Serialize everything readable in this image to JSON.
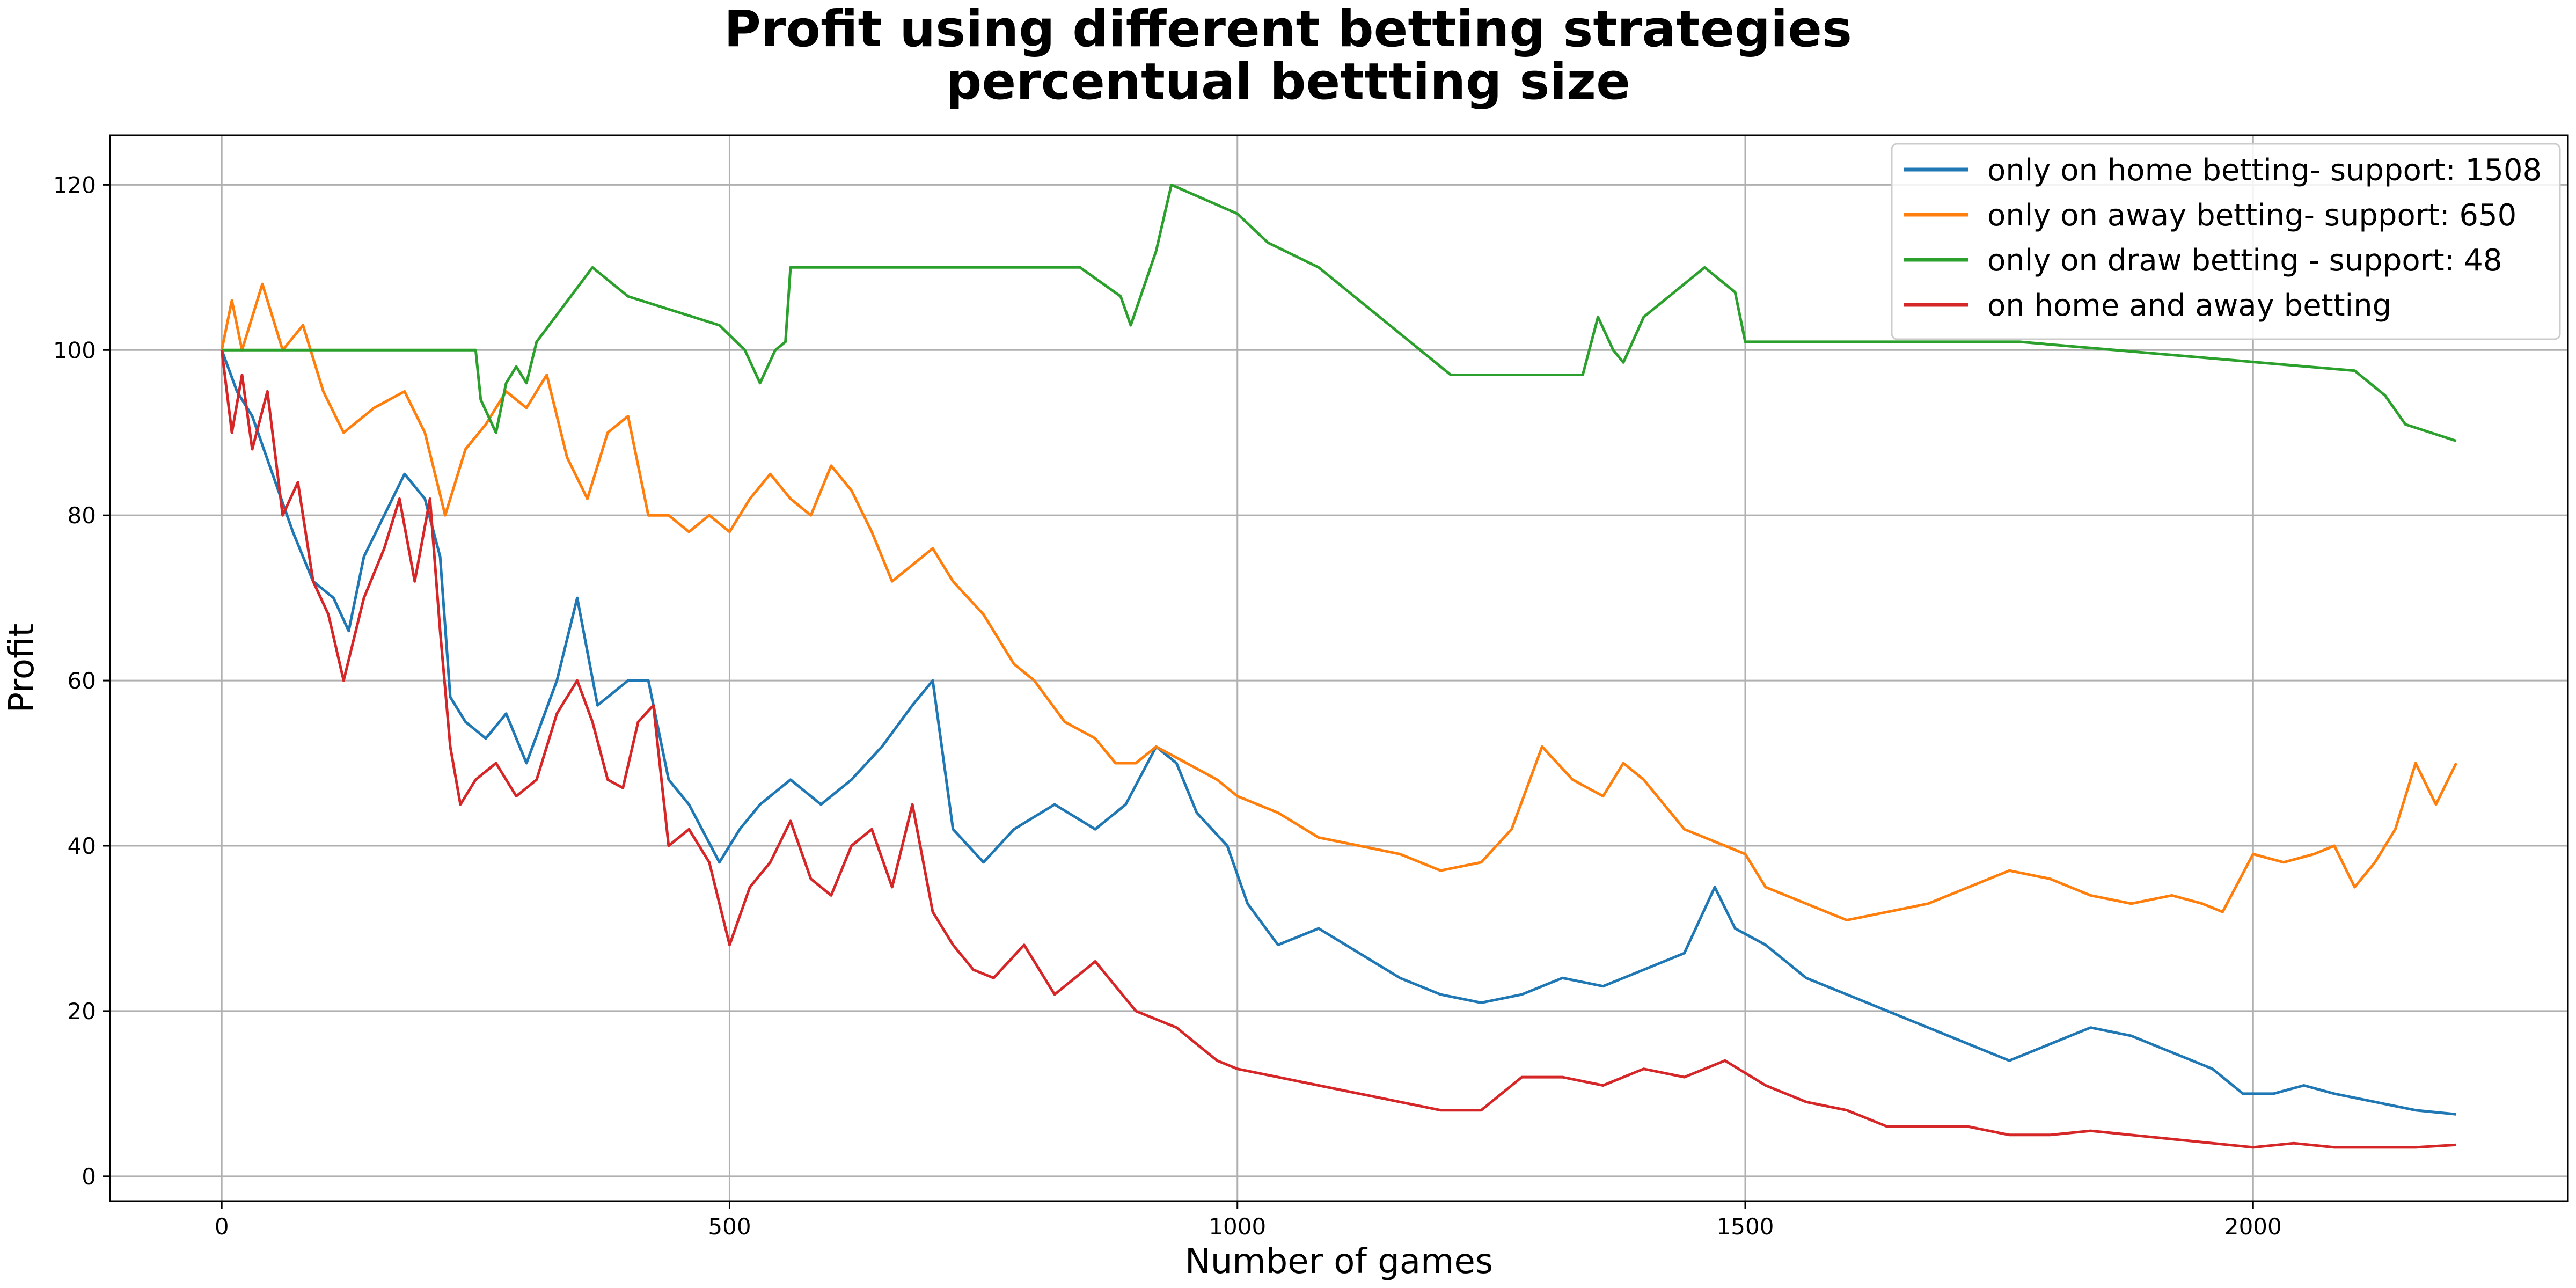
{
  "chart_data": {
    "type": "line",
    "title": "Profit using different betting strategies",
    "subtitle": "percentual bettting size",
    "xlabel": "Number of games",
    "ylabel": "Profit",
    "xlim": [
      -110,
      2310
    ],
    "ylim": [
      -3,
      126
    ],
    "xticks": [
      0,
      500,
      1000,
      1500,
      2000
    ],
    "yticks": [
      0,
      20,
      40,
      60,
      80,
      100,
      120
    ],
    "grid": true,
    "legend_position": "top-right",
    "series": [
      {
        "name": "only on home betting- support: 1508",
        "color": "#1f77b4",
        "x": [
          0,
          15,
          30,
          50,
          70,
          90,
          110,
          125,
          140,
          160,
          180,
          200,
          215,
          225,
          240,
          260,
          280,
          300,
          330,
          350,
          370,
          400,
          420,
          440,
          460,
          490,
          510,
          530,
          560,
          590,
          620,
          650,
          680,
          700,
          720,
          750,
          780,
          820,
          860,
          890,
          920,
          940,
          960,
          990,
          1010,
          1040,
          1080,
          1120,
          1160,
          1200,
          1240,
          1280,
          1320,
          1360,
          1400,
          1440,
          1470,
          1490,
          1520,
          1560,
          1600,
          1640,
          1680,
          1720,
          1760,
          1800,
          1840,
          1880,
          1920,
          1960,
          1990,
          2020,
          2050,
          2080,
          2120,
          2160,
          2200
        ],
        "y": [
          100,
          95,
          92,
          85,
          78,
          72,
          70,
          66,
          75,
          80,
          85,
          82,
          75,
          58,
          55,
          53,
          56,
          50,
          60,
          70,
          57,
          60,
          60,
          48,
          45,
          38,
          42,
          45,
          48,
          45,
          48,
          52,
          57,
          60,
          42,
          38,
          42,
          45,
          42,
          45,
          52,
          50,
          44,
          40,
          33,
          28,
          30,
          27,
          24,
          22,
          21,
          22,
          24,
          23,
          25,
          27,
          35,
          30,
          28,
          24,
          22,
          20,
          18,
          16,
          14,
          16,
          18,
          17,
          15,
          13,
          10,
          10,
          11,
          10,
          9,
          8,
          7.5
        ]
      },
      {
        "name": "only on away betting- support: 650",
        "color": "#ff7f0e",
        "x": [
          0,
          10,
          20,
          40,
          60,
          80,
          100,
          120,
          150,
          180,
          200,
          220,
          240,
          260,
          280,
          300,
          320,
          340,
          360,
          380,
          400,
          420,
          440,
          460,
          480,
          500,
          520,
          540,
          560,
          580,
          600,
          620,
          640,
          660,
          680,
          700,
          720,
          750,
          780,
          800,
          830,
          860,
          880,
          900,
          920,
          950,
          980,
          1000,
          1040,
          1080,
          1120,
          1160,
          1200,
          1240,
          1270,
          1300,
          1330,
          1360,
          1380,
          1400,
          1440,
          1480,
          1500,
          1520,
          1560,
          1600,
          1640,
          1680,
          1720,
          1760,
          1800,
          1840,
          1880,
          1920,
          1950,
          1970,
          2000,
          2030,
          2060,
          2080,
          2100,
          2120,
          2140,
          2160,
          2180,
          2200
        ],
        "y": [
          100,
          106,
          100,
          108,
          100,
          103,
          95,
          90,
          93,
          95,
          90,
          80,
          88,
          91,
          95,
          93,
          97,
          87,
          82,
          90,
          92,
          80,
          80,
          78,
          80,
          78,
          82,
          85,
          82,
          80,
          86,
          83,
          78,
          72,
          74,
          76,
          72,
          68,
          62,
          60,
          55,
          53,
          50,
          50,
          52,
          50,
          48,
          46,
          44,
          41,
          40,
          39,
          37,
          38,
          42,
          52,
          48,
          46,
          50,
          48,
          42,
          40,
          39,
          35,
          33,
          31,
          32,
          33,
          35,
          37,
          36,
          34,
          33,
          34,
          33,
          32,
          39,
          38,
          39,
          40,
          35,
          38,
          42,
          50,
          45,
          50
        ]
      },
      {
        "name": "only on draw betting - support: 48",
        "color": "#2ca02c",
        "x": [
          0,
          250,
          255,
          270,
          280,
          290,
          300,
          310,
          365,
          400,
          490,
          515,
          530,
          545,
          555,
          560,
          845,
          885,
          895,
          920,
          935,
          1000,
          1030,
          1080,
          1150,
          1210,
          1340,
          1355,
          1370,
          1380,
          1400,
          1420,
          1460,
          1490,
          1500,
          1510,
          1770,
          2100,
          2130,
          2150,
          2200
        ],
        "y": [
          100,
          100,
          94,
          90,
          96,
          98,
          96,
          101,
          110,
          106.5,
          103,
          100,
          96,
          100,
          101,
          110,
          110,
          106.5,
          103,
          112,
          120,
          116.5,
          113,
          110,
          103,
          97,
          97,
          104,
          100,
          98.5,
          104,
          106,
          110,
          107,
          101,
          101,
          101,
          97.5,
          94.5,
          91,
          89
        ]
      },
      {
        "name": "on home and away betting",
        "color": "#d62728",
        "x": [
          0,
          10,
          20,
          30,
          45,
          60,
          75,
          90,
          105,
          120,
          140,
          160,
          175,
          190,
          205,
          215,
          225,
          235,
          250,
          270,
          290,
          310,
          330,
          350,
          365,
          380,
          395,
          410,
          425,
          440,
          460,
          480,
          500,
          520,
          540,
          560,
          580,
          600,
          620,
          640,
          660,
          680,
          700,
          720,
          740,
          760,
          790,
          820,
          860,
          900,
          940,
          980,
          1000,
          1040,
          1080,
          1120,
          1160,
          1200,
          1240,
          1280,
          1320,
          1360,
          1400,
          1440,
          1480,
          1520,
          1560,
          1600,
          1640,
          1680,
          1720,
          1760,
          1800,
          1840,
          1880,
          1920,
          1960,
          2000,
          2040,
          2080,
          2120,
          2160,
          2200
        ],
        "y": [
          100,
          90,
          97,
          88,
          95,
          80,
          84,
          72,
          68,
          60,
          70,
          76,
          82,
          72,
          82,
          66,
          52,
          45,
          48,
          50,
          46,
          48,
          56,
          60,
          55,
          48,
          47,
          55,
          57,
          40,
          42,
          38,
          28,
          35,
          38,
          43,
          36,
          34,
          40,
          42,
          35,
          45,
          32,
          28,
          25,
          24,
          28,
          22,
          26,
          20,
          18,
          14,
          13,
          12,
          11,
          10,
          9,
          8,
          8,
          12,
          12,
          11,
          13,
          12,
          14,
          11,
          9,
          8,
          6,
          6,
          6,
          5,
          5,
          5.5,
          5,
          4.5,
          4,
          3.5,
          4,
          3.5,
          3.5,
          3.5,
          3.8
        ]
      }
    ]
  }
}
